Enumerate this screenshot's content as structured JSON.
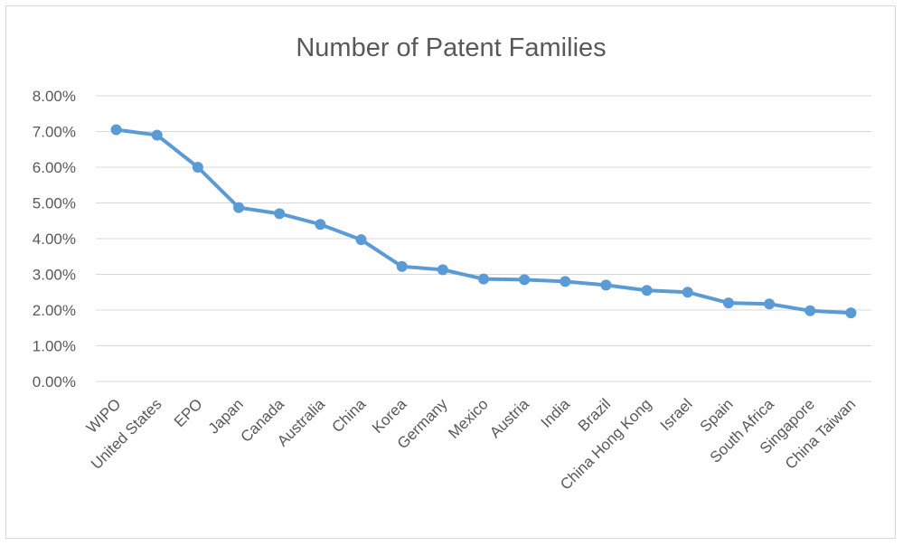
{
  "chart_data": {
    "type": "line",
    "title": "Number of Patent Families",
    "xlabel": "",
    "ylabel": "",
    "ylim": [
      0,
      8
    ],
    "yticks": [
      "0.00%",
      "1.00%",
      "2.00%",
      "3.00%",
      "4.00%",
      "5.00%",
      "6.00%",
      "7.00%",
      "8.00%"
    ],
    "grid": true,
    "legend": "none",
    "categories": [
      "WIPO",
      "United States",
      "EPO",
      "Japan",
      "Canada",
      "Australia",
      "China",
      "Korea",
      "Germany",
      "Mexico",
      "Austria",
      "India",
      "Brazil",
      "China Hong Kong",
      "Israel",
      "Spain",
      "South Africa",
      "Singapore",
      "China Taiwan"
    ],
    "series": [
      {
        "values": [
          7.05,
          6.9,
          6.0,
          4.87,
          4.7,
          4.4,
          3.97,
          3.22,
          3.13,
          2.87,
          2.85,
          2.8,
          2.7,
          2.55,
          2.5,
          2.2,
          2.17,
          1.98,
          1.92
        ],
        "color": "#5b9bd5"
      }
    ]
  }
}
